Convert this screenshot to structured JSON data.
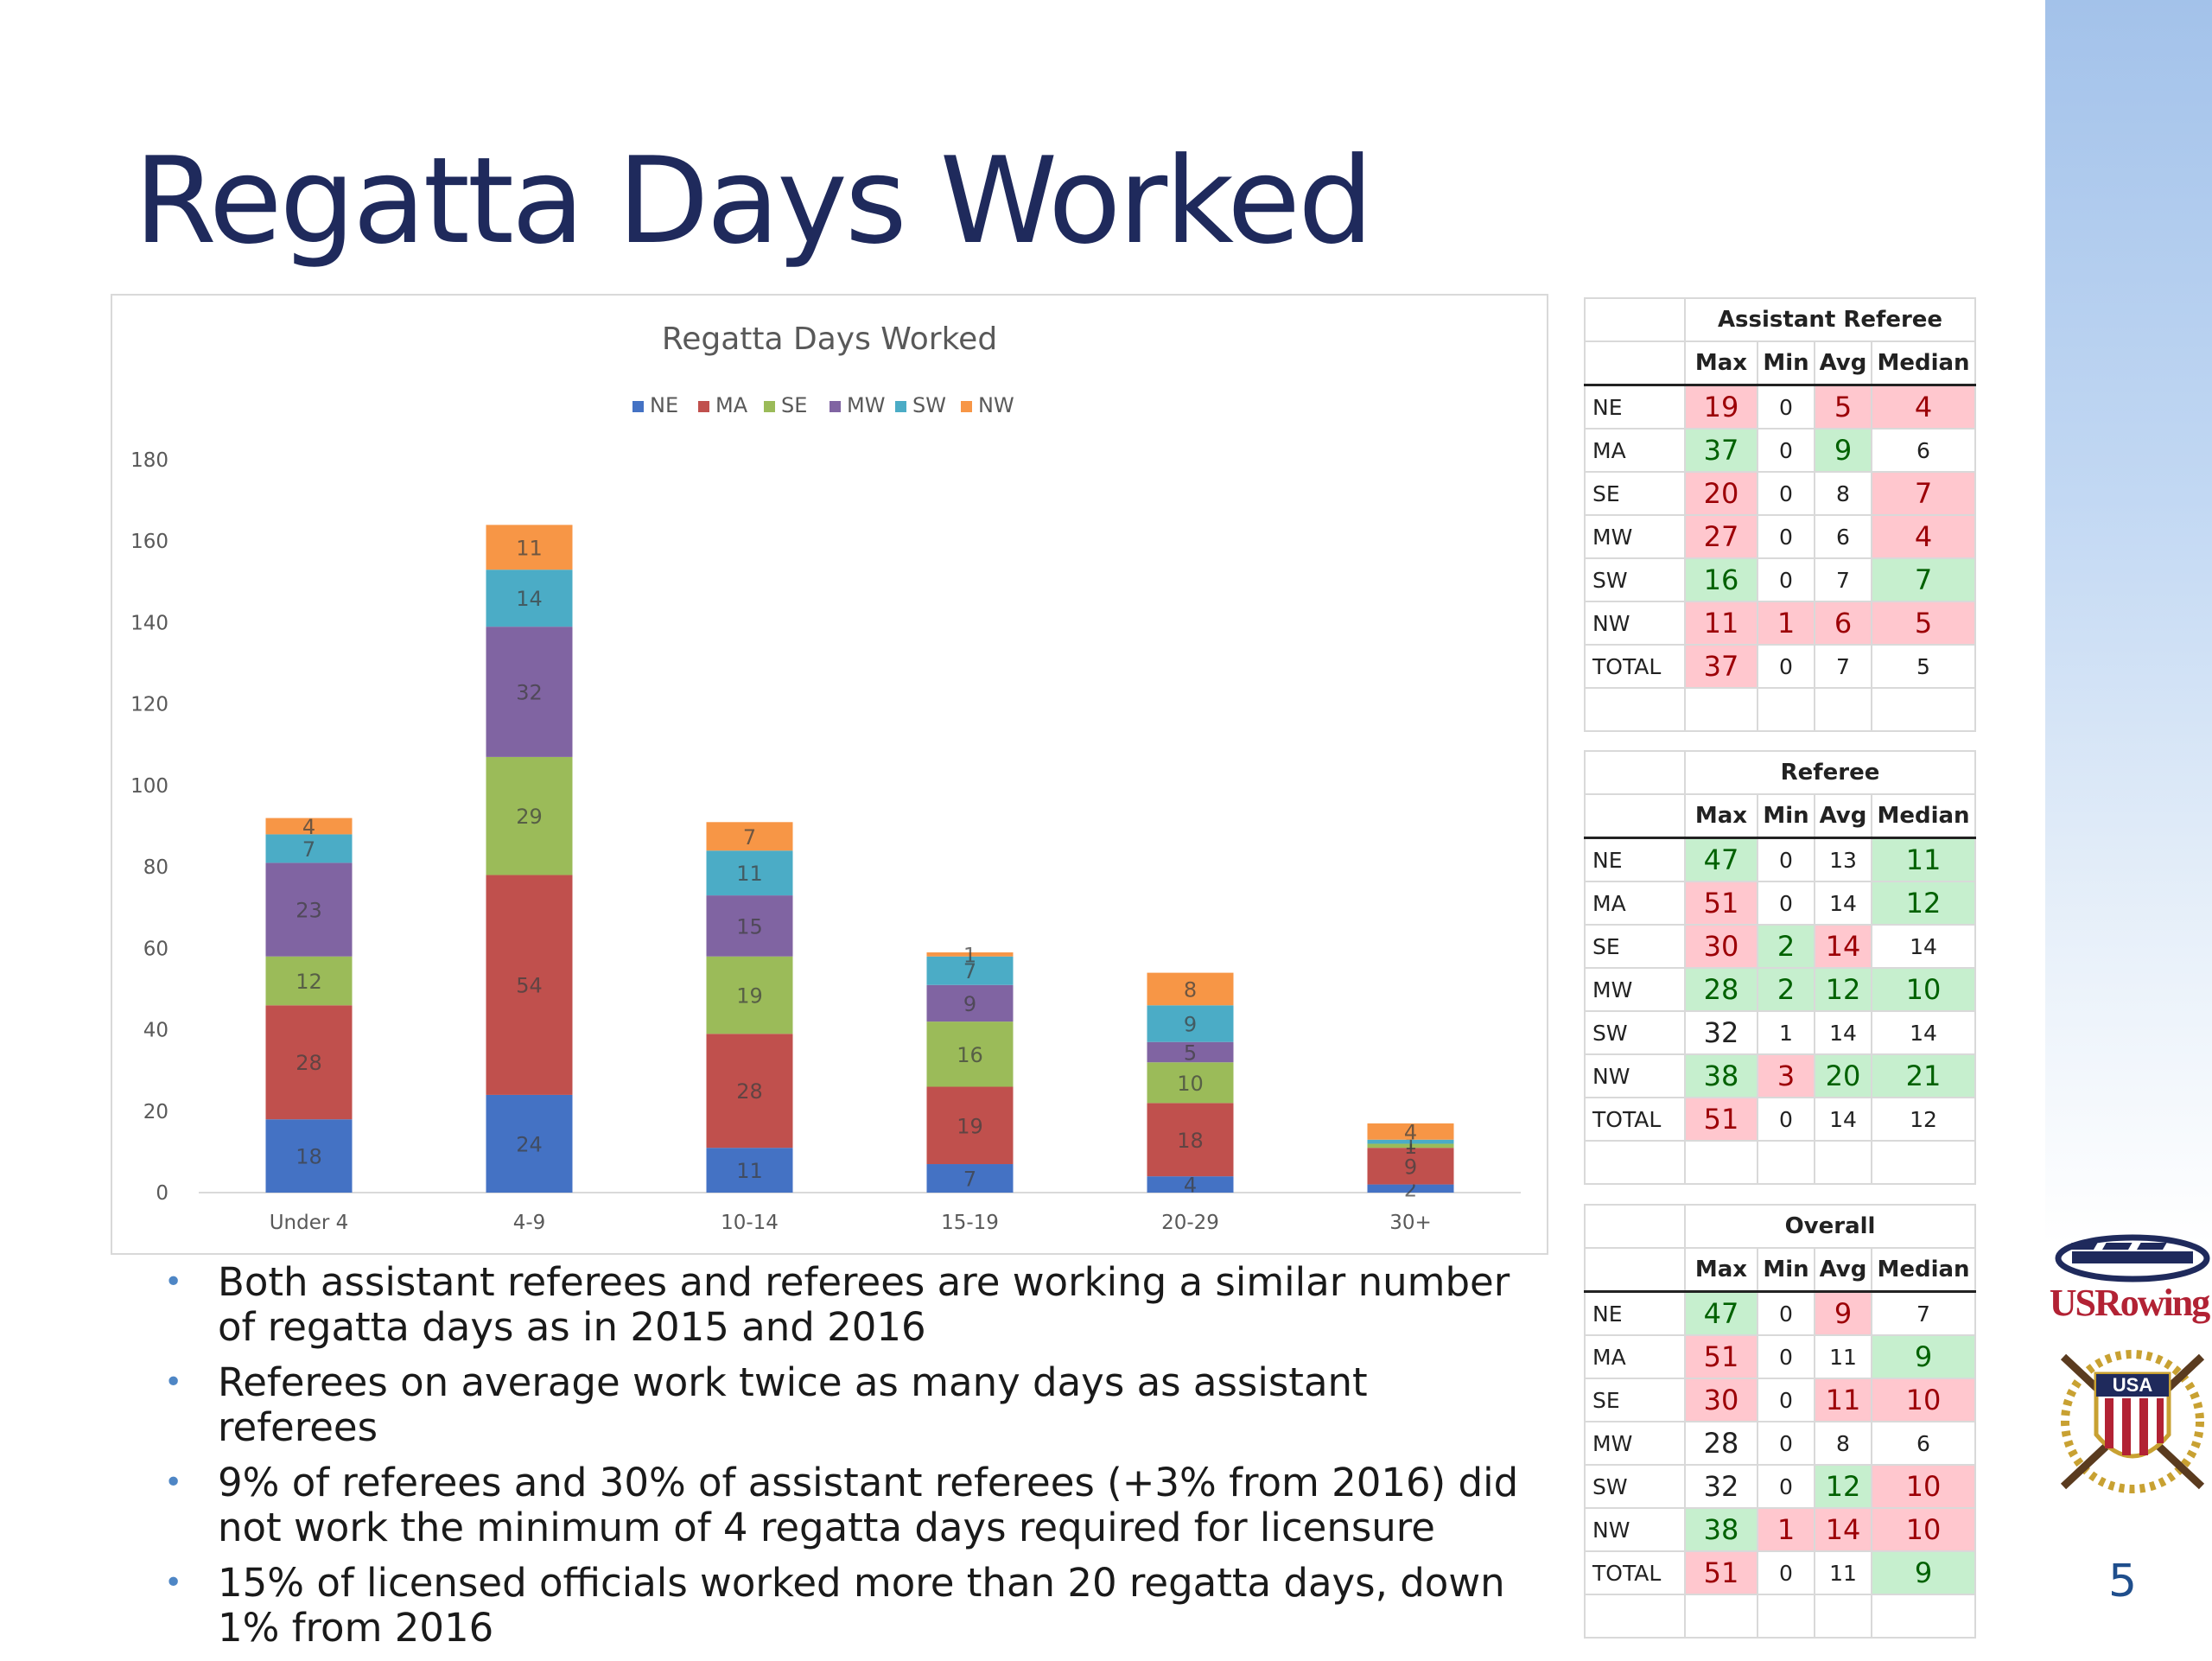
{
  "slide": {
    "title": "Regatta Days Worked",
    "page_number": "5",
    "logo_text": "USRowing",
    "logo_badge": "USA",
    "bullets": [
      "Both assistant referees and referees are working a similar number of regatta days as in 2015 and 2016",
      "Referees on average work twice as many days as assistant referees",
      "9% of referees and 30% of assistant referees (+3% from 2016) did not work the minimum of 4 regatta days required for licensure",
      "15% of licensed officials worked more than 20 regatta days, down 1% from 2016"
    ]
  },
  "chart_data": {
    "type": "bar",
    "stacked": true,
    "title": "Regatta Days Worked",
    "xlabel": "",
    "ylabel": "",
    "ylim": [
      0,
      180
    ],
    "yticks": [
      0,
      20,
      40,
      60,
      80,
      100,
      120,
      140,
      160,
      180
    ],
    "legend_position": "top",
    "categories": [
      "Under 4",
      "4-9",
      "10-14",
      "15-19",
      "20-29",
      "30+"
    ],
    "series": [
      {
        "name": "NE",
        "color": "#4472c4",
        "values": [
          18,
          24,
          11,
          7,
          4,
          2
        ]
      },
      {
        "name": "MA",
        "color": "#c0504d",
        "values": [
          28,
          54,
          28,
          19,
          18,
          9
        ]
      },
      {
        "name": "SE",
        "color": "#9bbb59",
        "values": [
          12,
          29,
          19,
          16,
          10,
          1
        ]
      },
      {
        "name": "MW",
        "color": "#8064a2",
        "values": [
          23,
          32,
          15,
          9,
          5,
          0
        ]
      },
      {
        "name": "SW",
        "color": "#4bacc6",
        "values": [
          7,
          14,
          11,
          7,
          9,
          1
        ]
      },
      {
        "name": "NW",
        "color": "#f79646",
        "values": [
          4,
          11,
          7,
          1,
          8,
          4
        ]
      }
    ]
  },
  "tables": [
    {
      "title": "Assistant Referee",
      "headers": [
        "Max",
        "Min",
        "Avg",
        "Median"
      ],
      "rows": [
        {
          "label": "NE",
          "cells": [
            {
              "v": "19",
              "c": "red"
            },
            {
              "v": "0",
              "c": ""
            },
            {
              "v": "5",
              "c": "red"
            },
            {
              "v": "4",
              "c": "red"
            }
          ]
        },
        {
          "label": "MA",
          "cells": [
            {
              "v": "37",
              "c": "green"
            },
            {
              "v": "0",
              "c": ""
            },
            {
              "v": "9",
              "c": "green"
            },
            {
              "v": "6",
              "c": ""
            }
          ]
        },
        {
          "label": "SE",
          "cells": [
            {
              "v": "20",
              "c": "red"
            },
            {
              "v": "0",
              "c": ""
            },
            {
              "v": "8",
              "c": ""
            },
            {
              "v": "7",
              "c": "red"
            }
          ]
        },
        {
          "label": "MW",
          "cells": [
            {
              "v": "27",
              "c": "red"
            },
            {
              "v": "0",
              "c": ""
            },
            {
              "v": "6",
              "c": ""
            },
            {
              "v": "4",
              "c": "red"
            }
          ]
        },
        {
          "label": "SW",
          "cells": [
            {
              "v": "16",
              "c": "green"
            },
            {
              "v": "0",
              "c": ""
            },
            {
              "v": "7",
              "c": ""
            },
            {
              "v": "7",
              "c": "green"
            }
          ]
        },
        {
          "label": "NW",
          "cells": [
            {
              "v": "11",
              "c": "red"
            },
            {
              "v": "1",
              "c": "red"
            },
            {
              "v": "6",
              "c": "red"
            },
            {
              "v": "5",
              "c": "red"
            }
          ]
        },
        {
          "label": "TOTAL",
          "cells": [
            {
              "v": "37",
              "c": "red"
            },
            {
              "v": "0",
              "c": ""
            },
            {
              "v": "7",
              "c": ""
            },
            {
              "v": "5",
              "c": ""
            }
          ]
        }
      ]
    },
    {
      "title": "Referee",
      "headers": [
        "Max",
        "Min",
        "Avg",
        "Median"
      ],
      "rows": [
        {
          "label": "NE",
          "cells": [
            {
              "v": "47",
              "c": "green"
            },
            {
              "v": "0",
              "c": ""
            },
            {
              "v": "13",
              "c": ""
            },
            {
              "v": "11",
              "c": "green"
            }
          ]
        },
        {
          "label": "MA",
          "cells": [
            {
              "v": "51",
              "c": "red"
            },
            {
              "v": "0",
              "c": ""
            },
            {
              "v": "14",
              "c": ""
            },
            {
              "v": "12",
              "c": "green"
            }
          ]
        },
        {
          "label": "SE",
          "cells": [
            {
              "v": "30",
              "c": "red"
            },
            {
              "v": "2",
              "c": "green"
            },
            {
              "v": "14",
              "c": "red"
            },
            {
              "v": "14",
              "c": ""
            }
          ]
        },
        {
          "label": "MW",
          "cells": [
            {
              "v": "28",
              "c": "green"
            },
            {
              "v": "2",
              "c": "green"
            },
            {
              "v": "12",
              "c": "green"
            },
            {
              "v": "10",
              "c": "green"
            }
          ]
        },
        {
          "label": "SW",
          "cells": [
            {
              "v": "32",
              "c": ""
            },
            {
              "v": "1",
              "c": ""
            },
            {
              "v": "14",
              "c": ""
            },
            {
              "v": "14",
              "c": ""
            }
          ]
        },
        {
          "label": "NW",
          "cells": [
            {
              "v": "38",
              "c": "green"
            },
            {
              "v": "3",
              "c": "red"
            },
            {
              "v": "20",
              "c": "green"
            },
            {
              "v": "21",
              "c": "green"
            }
          ]
        },
        {
          "label": "TOTAL",
          "cells": [
            {
              "v": "51",
              "c": "red"
            },
            {
              "v": "0",
              "c": ""
            },
            {
              "v": "14",
              "c": ""
            },
            {
              "v": "12",
              "c": ""
            }
          ]
        }
      ]
    },
    {
      "title": "Overall",
      "headers": [
        "Max",
        "Min",
        "Avg",
        "Median"
      ],
      "rows": [
        {
          "label": "NE",
          "cells": [
            {
              "v": "47",
              "c": "green"
            },
            {
              "v": "0",
              "c": ""
            },
            {
              "v": "9",
              "c": "red"
            },
            {
              "v": "7",
              "c": ""
            }
          ]
        },
        {
          "label": "MA",
          "cells": [
            {
              "v": "51",
              "c": "red"
            },
            {
              "v": "0",
              "c": ""
            },
            {
              "v": "11",
              "c": ""
            },
            {
              "v": "9",
              "c": "green"
            }
          ]
        },
        {
          "label": "SE",
          "cells": [
            {
              "v": "30",
              "c": "red"
            },
            {
              "v": "0",
              "c": ""
            },
            {
              "v": "11",
              "c": "red"
            },
            {
              "v": "10",
              "c": "red"
            }
          ]
        },
        {
          "label": "MW",
          "cells": [
            {
              "v": "28",
              "c": ""
            },
            {
              "v": "0",
              "c": ""
            },
            {
              "v": "8",
              "c": ""
            },
            {
              "v": "6",
              "c": ""
            }
          ]
        },
        {
          "label": "SW",
          "cells": [
            {
              "v": "32",
              "c": ""
            },
            {
              "v": "0",
              "c": ""
            },
            {
              "v": "12",
              "c": "green"
            },
            {
              "v": "10",
              "c": "red"
            }
          ]
        },
        {
          "label": "NW",
          "cells": [
            {
              "v": "38",
              "c": "green"
            },
            {
              "v": "1",
              "c": "red"
            },
            {
              "v": "14",
              "c": "red"
            },
            {
              "v": "10",
              "c": "red"
            }
          ]
        },
        {
          "label": "TOTAL",
          "cells": [
            {
              "v": "51",
              "c": "red"
            },
            {
              "v": "0",
              "c": ""
            },
            {
              "v": "11",
              "c": ""
            },
            {
              "v": "9",
              "c": "green"
            }
          ]
        }
      ]
    }
  ]
}
